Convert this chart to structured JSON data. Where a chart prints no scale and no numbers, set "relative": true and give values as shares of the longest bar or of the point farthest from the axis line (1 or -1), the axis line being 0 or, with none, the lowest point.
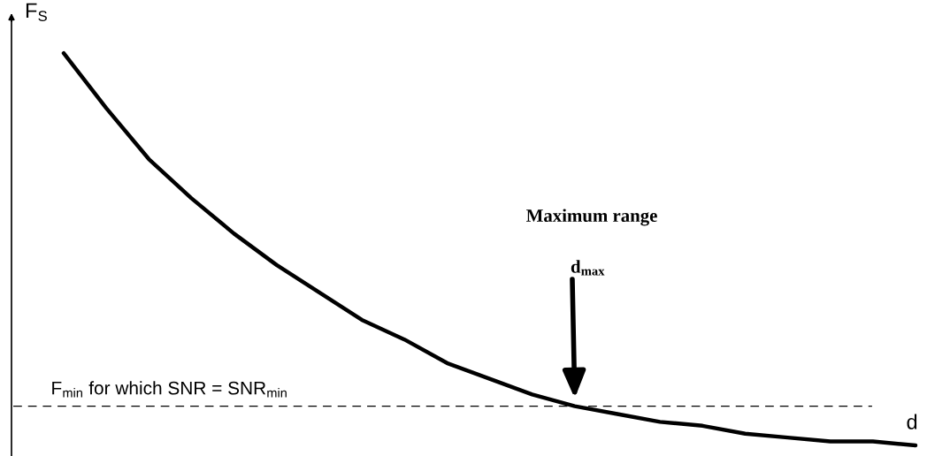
{
  "chart_data": {
    "type": "line",
    "relative": true,
    "xlabel": "d",
    "ylabel": "F$_{S}$",
    "categories": [
      null,
      null,
      null,
      null,
      null,
      null,
      null,
      null,
      null,
      null,
      null,
      null,
      null,
      null,
      null,
      null,
      null,
      null,
      null,
      null,
      null
    ],
    "series": [
      {
        "color": "#000000",
        "values": [
          1.0,
          0.86,
          0.73,
          0.63,
          0.54,
          0.46,
          0.39,
          0.32,
          0.27,
          0.21,
          0.17,
          0.13,
          0.1,
          0.08,
          0.06,
          0.05,
          0.03,
          0.02,
          0.01,
          0.01,
          0.0
        ]
      }
    ],
    "ref_lines": [
      {
        "axis": "y",
        "value": 0.1,
        "label": "F$_{min}$ for which SNR = SNR$_{min}$",
        "line_style": "dashed",
        "color": "#000000"
      }
    ],
    "annotations": [
      "Maximum range",
      "d$_{max}$"
    ],
    "grid": false,
    "legend": false,
    "marker": "none",
    "line_style": "solid"
  }
}
